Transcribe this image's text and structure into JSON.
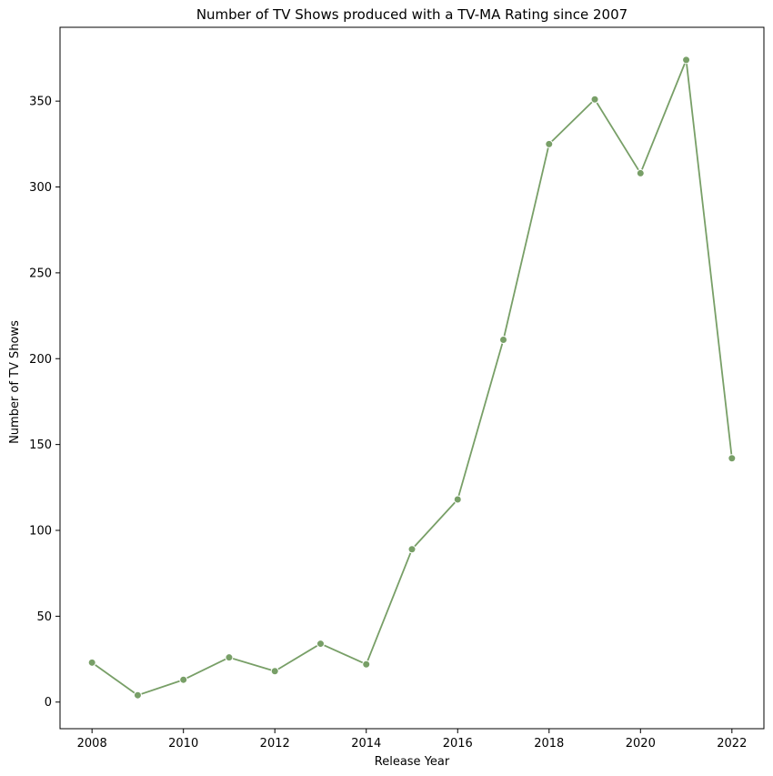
{
  "chart_data": {
    "type": "line",
    "title": "Number of TV Shows produced with a TV-MA Rating since 2007",
    "xlabel": "Release Year",
    "ylabel": "Number of TV Shows",
    "x": [
      2008,
      2009,
      2010,
      2011,
      2012,
      2013,
      2014,
      2015,
      2016,
      2017,
      2018,
      2019,
      2020,
      2021,
      2022
    ],
    "series": [
      {
        "values": [
          23,
          4,
          13,
          26,
          18,
          34,
          22,
          89,
          118,
          211,
          325,
          351,
          308,
          374,
          142
        ]
      }
    ],
    "xticks": [
      2008,
      2010,
      2012,
      2014,
      2016,
      2018,
      2020,
      2022
    ],
    "yticks": [
      0,
      50,
      100,
      150,
      200,
      250,
      300,
      350
    ],
    "xlim": [
      2007.3,
      2022.7
    ],
    "ylim": [
      -15.5,
      393
    ],
    "grid": false,
    "marker": "circle",
    "colors": {
      "line": "#789f67",
      "axis": "#000000",
      "background": "#ffffff"
    }
  }
}
